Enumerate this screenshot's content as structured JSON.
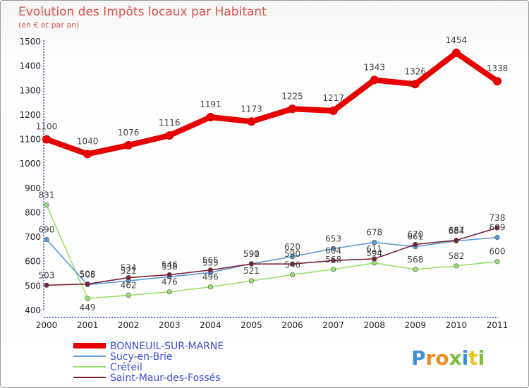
{
  "chart_data": {
    "type": "line",
    "title": "Evolution des Impôts locaux par Habitant",
    "subtitle": "(en € et par an)",
    "categories": [
      "2000",
      "2001",
      "2002",
      "2003",
      "2004",
      "2005",
      "2006",
      "2007",
      "2008",
      "2009",
      "2010",
      "2011"
    ],
    "ylim": [
      400,
      1500
    ],
    "yticks": [
      400,
      500,
      600,
      700,
      800,
      900,
      1000,
      1100,
      1200,
      1300,
      1400,
      1500
    ],
    "grid": false,
    "legend_position": "bottom-left",
    "series": [
      {
        "name": "BONNEUIL-SUR-MARNE",
        "color": "#e80000",
        "values": [
          1100,
          1040,
          1076,
          1116,
          1191,
          1173,
          1225,
          1217,
          1343,
          1326,
          1454,
          1338
        ]
      },
      {
        "name": "Sucy-en-Brie",
        "color": "#5e9ad4",
        "values": [
          690,
          505,
          521,
          538,
          555,
          591,
          620,
          653,
          678,
          661,
          684,
          699
        ]
      },
      {
        "name": "Créteil",
        "color": "#9adf6a",
        "values": [
          831,
          449,
          462,
          476,
          496,
          521,
          546,
          568,
          594,
          568,
          582,
          600
        ]
      },
      {
        "name": "Saint-Maur-des-Fossés",
        "color": "#7a2232",
        "values": [
          503,
          508,
          534,
          546,
          565,
          590,
          590,
          604,
          611,
          670,
          687,
          738
        ]
      }
    ]
  },
  "branding": {
    "logo_text": "Proxiti"
  }
}
